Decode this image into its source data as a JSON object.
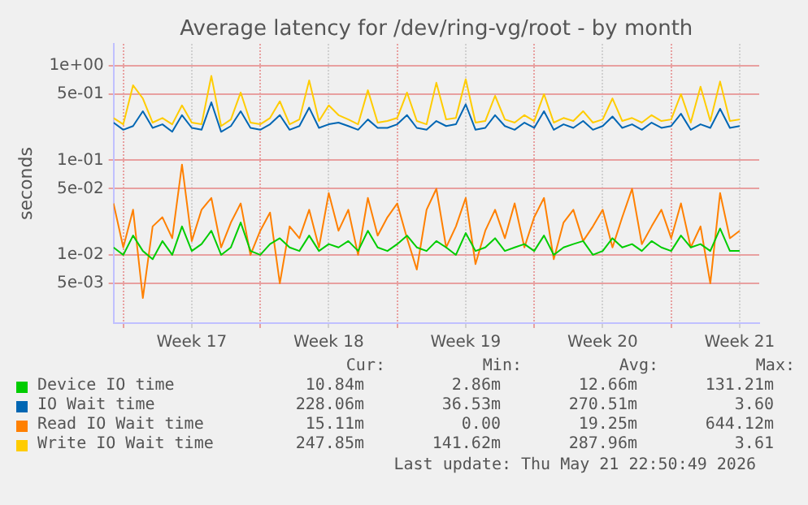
{
  "chart_data": {
    "type": "line",
    "title": "Average latency for /dev/ring-vg/root - by month",
    "ylabel": "seconds",
    "log": "y",
    "grid": true,
    "legend": "bottom",
    "marker": "none",
    "line_style": "solid",
    "ylim": [
      0.0019,
      1.7
    ],
    "yticks": [
      {
        "value": 1,
        "label": "1e+00"
      },
      {
        "value": 0.5,
        "label": "5e-01"
      },
      {
        "value": 0.1,
        "label": "1e-01"
      },
      {
        "value": 0.05,
        "label": "5e-02"
      },
      {
        "value": 0.01,
        "label": "1e-02"
      },
      {
        "value": 0.005,
        "label": "5e-03"
      }
    ],
    "xlim": [
      "2026-04-19T12:00",
      "2026-05-22T12:00"
    ],
    "xticks": [
      {
        "value": "2026-04-20T00:00",
        "label": null
      },
      {
        "value": "2026-04-23T12:00",
        "label": "Week 17"
      },
      {
        "value": "2026-04-27T00:00",
        "label": null
      },
      {
        "value": "2026-04-30T12:00",
        "label": "Week 18"
      },
      {
        "value": "2026-05-04T00:00",
        "label": null
      },
      {
        "value": "2026-05-07T12:00",
        "label": "Week 19"
      },
      {
        "value": "2026-05-11T00:00",
        "label": null
      },
      {
        "value": "2026-05-14T12:00",
        "label": "Week 20"
      },
      {
        "value": "2026-05-18T00:00",
        "label": null
      },
      {
        "value": "2026-05-21T12:00",
        "label": "Week 21"
      }
    ],
    "x": [
      "2026-04-19T12:00",
      "2026-04-20T00:00",
      "2026-04-20T12:00",
      "2026-04-21T00:00",
      "2026-04-21T12:00",
      "2026-04-22T00:00",
      "2026-04-22T12:00",
      "2026-04-23T00:00",
      "2026-04-23T12:00",
      "2026-04-24T00:00",
      "2026-04-24T12:00",
      "2026-04-25T00:00",
      "2026-04-25T12:00",
      "2026-04-26T00:00",
      "2026-04-26T12:00",
      "2026-04-27T00:00",
      "2026-04-27T12:00",
      "2026-04-28T00:00",
      "2026-04-28T12:00",
      "2026-04-29T00:00",
      "2026-04-29T12:00",
      "2026-04-30T00:00",
      "2026-04-30T12:00",
      "2026-05-01T00:00",
      "2026-05-01T12:00",
      "2026-05-02T00:00",
      "2026-05-02T12:00",
      "2026-05-03T00:00",
      "2026-05-03T12:00",
      "2026-05-04T00:00",
      "2026-05-04T12:00",
      "2026-05-05T00:00",
      "2026-05-05T12:00",
      "2026-05-06T00:00",
      "2026-05-06T12:00",
      "2026-05-07T00:00",
      "2026-05-07T12:00",
      "2026-05-08T00:00",
      "2026-05-08T12:00",
      "2026-05-09T00:00",
      "2026-05-09T12:00",
      "2026-05-10T00:00",
      "2026-05-10T12:00",
      "2026-05-11T00:00",
      "2026-05-11T12:00",
      "2026-05-12T00:00",
      "2026-05-12T12:00",
      "2026-05-13T00:00",
      "2026-05-13T12:00",
      "2026-05-14T00:00",
      "2026-05-14T12:00",
      "2026-05-15T00:00",
      "2026-05-15T12:00",
      "2026-05-16T00:00",
      "2026-05-16T12:00",
      "2026-05-17T00:00",
      "2026-05-17T12:00",
      "2026-05-18T00:00",
      "2026-05-18T12:00",
      "2026-05-19T00:00",
      "2026-05-19T12:00",
      "2026-05-20T00:00",
      "2026-05-20T12:00",
      "2026-05-21T00:00",
      "2026-05-21T12:00"
    ],
    "series": [
      {
        "name": "Device IO time",
        "color": "#00cc00",
        "values": [
          0.012,
          0.01,
          0.016,
          0.011,
          0.009,
          0.014,
          0.01,
          0.02,
          0.011,
          0.013,
          0.018,
          0.01,
          0.012,
          0.022,
          0.011,
          0.01,
          0.013,
          0.015,
          0.012,
          0.011,
          0.016,
          0.011,
          0.013,
          0.012,
          0.014,
          0.011,
          0.018,
          0.012,
          0.011,
          0.013,
          0.016,
          0.012,
          0.011,
          0.014,
          0.012,
          0.01,
          0.017,
          0.011,
          0.012,
          0.015,
          0.011,
          0.012,
          0.013,
          0.011,
          0.016,
          0.01,
          0.012,
          0.013,
          0.014,
          0.01,
          0.011,
          0.015,
          0.012,
          0.013,
          0.011,
          0.014,
          0.012,
          0.011,
          0.016,
          0.012,
          0.013,
          0.011,
          0.019,
          0.011,
          0.011
        ]
      },
      {
        "name": "IO Wait time",
        "color": "#0066b3",
        "values": [
          0.25,
          0.21,
          0.23,
          0.33,
          0.22,
          0.24,
          0.2,
          0.3,
          0.22,
          0.21,
          0.41,
          0.2,
          0.23,
          0.33,
          0.22,
          0.21,
          0.24,
          0.3,
          0.21,
          0.23,
          0.36,
          0.22,
          0.24,
          0.25,
          0.23,
          0.21,
          0.27,
          0.22,
          0.22,
          0.24,
          0.3,
          0.22,
          0.21,
          0.26,
          0.23,
          0.24,
          0.39,
          0.21,
          0.22,
          0.3,
          0.23,
          0.21,
          0.25,
          0.22,
          0.33,
          0.21,
          0.24,
          0.22,
          0.26,
          0.21,
          0.23,
          0.29,
          0.22,
          0.24,
          0.21,
          0.25,
          0.22,
          0.23,
          0.31,
          0.21,
          0.24,
          0.22,
          0.35,
          0.22,
          0.23
        ]
      },
      {
        "name": "Read IO Wait time",
        "color": "#ff8000",
        "values": [
          0.035,
          0.012,
          0.03,
          0.0035,
          0.02,
          0.025,
          0.015,
          0.09,
          0.014,
          0.03,
          0.04,
          0.012,
          0.022,
          0.035,
          0.01,
          0.018,
          0.028,
          0.005,
          0.02,
          0.015,
          0.03,
          0.012,
          0.045,
          0.018,
          0.03,
          0.01,
          0.04,
          0.016,
          0.025,
          0.035,
          0.015,
          0.007,
          0.03,
          0.05,
          0.012,
          0.02,
          0.04,
          0.008,
          0.018,
          0.03,
          0.015,
          0.035,
          0.012,
          0.025,
          0.04,
          0.009,
          0.022,
          0.03,
          0.014,
          0.02,
          0.03,
          0.012,
          0.025,
          0.05,
          0.013,
          0.02,
          0.03,
          0.015,
          0.035,
          0.012,
          0.02,
          0.005,
          0.045,
          0.015,
          0.018
        ]
      },
      {
        "name": "Write IO Wait time",
        "color": "#ffcc00",
        "values": [
          0.28,
          0.24,
          0.62,
          0.45,
          0.25,
          0.28,
          0.24,
          0.38,
          0.25,
          0.24,
          0.78,
          0.23,
          0.27,
          0.52,
          0.25,
          0.24,
          0.28,
          0.42,
          0.24,
          0.27,
          0.7,
          0.26,
          0.38,
          0.3,
          0.27,
          0.24,
          0.55,
          0.25,
          0.26,
          0.28,
          0.52,
          0.26,
          0.24,
          0.66,
          0.27,
          0.28,
          0.72,
          0.25,
          0.26,
          0.48,
          0.27,
          0.25,
          0.3,
          0.26,
          0.5,
          0.25,
          0.28,
          0.26,
          0.33,
          0.25,
          0.27,
          0.45,
          0.26,
          0.28,
          0.25,
          0.3,
          0.26,
          0.27,
          0.5,
          0.25,
          0.6,
          0.26,
          0.68,
          0.26,
          0.27
        ]
      }
    ],
    "annotations": [
      "Cur:",
      "Min:",
      "Avg:",
      "Max:",
      "10.84m",
      "2.86m",
      "12.66m",
      "131.21m",
      "228.06m",
      "36.53m",
      "270.51m",
      "3.60",
      "15.11m",
      "0.00",
      "19.25m",
      "644.12m",
      "247.85m",
      "141.62m",
      "287.96m",
      "3.61",
      "Last update: Thu May 21 22:50:49 2026"
    ]
  }
}
